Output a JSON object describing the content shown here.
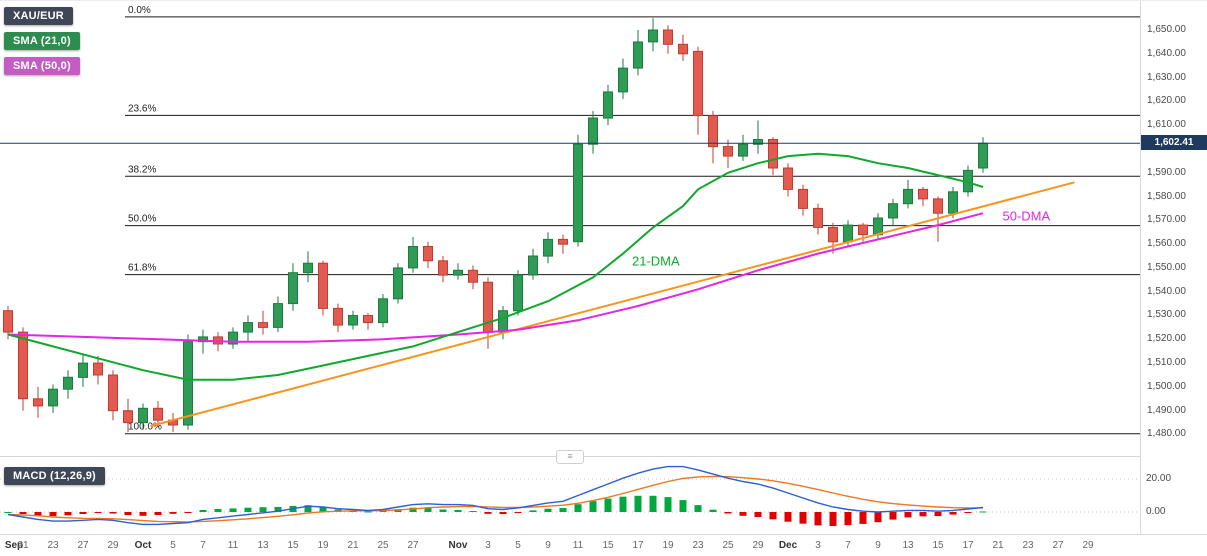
{
  "header": {
    "instrument": "XAU/EUR",
    "sma21_label": "SMA (21,0)",
    "sma50_label": "SMA (50,0)"
  },
  "macd_panel": {
    "label": "MACD (12,26,9)",
    "axis_ticks": [
      20,
      0
    ]
  },
  "price_axis": {
    "ticks": [
      1650,
      1640,
      1630,
      1620,
      1610,
      1590,
      1580,
      1570,
      1560,
      1550,
      1540,
      1530,
      1520,
      1510,
      1500,
      1490,
      1480
    ],
    "last_price_label": "1,602.41"
  },
  "fib_levels": [
    {
      "label": "0.0%",
      "value": 1655.5
    },
    {
      "label": "23.6%",
      "value": 1614.1
    },
    {
      "label": "38.2%",
      "value": 1588.5
    },
    {
      "label": "50.0%",
      "value": 1567.8
    },
    {
      "label": "61.8%",
      "value": 1547.2
    },
    {
      "label": "100.0%",
      "value": 1480.3
    }
  ],
  "annotations": [
    {
      "name": "dma21-label",
      "text": "21-DMA",
      "i": 41.6,
      "v": 1551,
      "color": "#0fa82e"
    },
    {
      "name": "dma50-label",
      "text": "50-DMA",
      "i": 66.3,
      "v": 1570,
      "color": "#e326e3"
    }
  ],
  "x_axis": [
    {
      "t": "Sep",
      "i": 0,
      "m": true
    },
    {
      "t": "21",
      "i": 1
    },
    {
      "t": "23",
      "i": 3
    },
    {
      "t": "27",
      "i": 5
    },
    {
      "t": "29",
      "i": 7
    },
    {
      "t": "Oct",
      "i": 9,
      "m": true
    },
    {
      "t": "5",
      "i": 11
    },
    {
      "t": "7",
      "i": 13
    },
    {
      "t": "11",
      "i": 15
    },
    {
      "t": "13",
      "i": 17
    },
    {
      "t": "15",
      "i": 19
    },
    {
      "t": "19",
      "i": 21
    },
    {
      "t": "21",
      "i": 23
    },
    {
      "t": "25",
      "i": 25
    },
    {
      "t": "27",
      "i": 27
    },
    {
      "t": "Nov",
      "i": 30,
      "m": true
    },
    {
      "t": "3",
      "i": 32
    },
    {
      "t": "5",
      "i": 34
    },
    {
      "t": "9",
      "i": 36
    },
    {
      "t": "11",
      "i": 38
    },
    {
      "t": "15",
      "i": 40
    },
    {
      "t": "17",
      "i": 42
    },
    {
      "t": "19",
      "i": 44
    },
    {
      "t": "23",
      "i": 46
    },
    {
      "t": "25",
      "i": 48
    },
    {
      "t": "29",
      "i": 50
    },
    {
      "t": "Dec",
      "i": 52,
      "m": true
    },
    {
      "t": "3",
      "i": 54
    },
    {
      "t": "7",
      "i": 56
    },
    {
      "t": "9",
      "i": 58
    },
    {
      "t": "13",
      "i": 60
    },
    {
      "t": "15",
      "i": 62
    },
    {
      "t": "17",
      "i": 64
    },
    {
      "t": "21",
      "i": 66
    },
    {
      "t": "23",
      "i": 68
    },
    {
      "t": "27",
      "i": 70
    },
    {
      "t": "29",
      "i": 72
    }
  ],
  "colors": {
    "up": "#2f9c55",
    "up_border": "#1e7a3f",
    "down": "#e25b50",
    "down_border": "#bf3c31",
    "sma21": "#0fa82e",
    "sma50": "#e326e3",
    "trendline": "#f7941e",
    "fib_line": "#1a1a1a",
    "last_price": "#1e3a5f",
    "macd_line": "#2b5fd9",
    "macd_signal": "#ef7622",
    "hist_up": "#00a83e",
    "hist_down": "#e00000",
    "badge_instrument": "#3f4656",
    "badge_sma21": "#2f8c4f",
    "badge_sma50": "#c35cc3",
    "badge_macd": "#3f4656"
  },
  "chart_data": {
    "type": "candlestick",
    "instrument": "XAU/EUR",
    "last_price": 1602.41,
    "price_domain": [
      1472.2,
      1662.2
    ],
    "macd_domain": [
      -13.3,
      32.1
    ],
    "candles": [
      [
        1532,
        1534,
        1520,
        1523
      ],
      [
        1523,
        1525,
        1490,
        1495
      ],
      [
        1495,
        1500,
        1487,
        1492
      ],
      [
        1492,
        1501,
        1489,
        1499
      ],
      [
        1499,
        1507,
        1495,
        1504
      ],
      [
        1504,
        1514,
        1500,
        1510
      ],
      [
        1510,
        1513,
        1501,
        1505
      ],
      [
        1505,
        1507,
        1486,
        1490
      ],
      [
        1490,
        1495,
        1481,
        1485
      ],
      [
        1485,
        1493,
        1482,
        1491
      ],
      [
        1491,
        1494,
        1483,
        1486
      ],
      [
        1486,
        1489,
        1481,
        1484
      ],
      [
        1484,
        1522,
        1482,
        1519
      ],
      [
        1519,
        1524,
        1514,
        1521
      ],
      [
        1521,
        1523,
        1515,
        1518
      ],
      [
        1518,
        1525,
        1516,
        1523
      ],
      [
        1523,
        1530,
        1519,
        1527
      ],
      [
        1527,
        1532,
        1522,
        1525
      ],
      [
        1525,
        1538,
        1523,
        1535
      ],
      [
        1535,
        1552,
        1532,
        1548
      ],
      [
        1548,
        1557,
        1544,
        1552
      ],
      [
        1552,
        1553,
        1530,
        1533
      ],
      [
        1533,
        1535,
        1523,
        1526
      ],
      [
        1526,
        1532,
        1524,
        1530
      ],
      [
        1530,
        1531,
        1524,
        1527
      ],
      [
        1527,
        1539,
        1525,
        1537
      ],
      [
        1537,
        1552,
        1535,
        1550
      ],
      [
        1550,
        1563,
        1548,
        1559
      ],
      [
        1559,
        1561,
        1550,
        1553
      ],
      [
        1553,
        1555,
        1544,
        1547
      ],
      [
        1547,
        1552,
        1545,
        1549
      ],
      [
        1549,
        1551,
        1541,
        1544
      ],
      [
        1544,
        1546,
        1516,
        1523
      ],
      [
        1523,
        1534,
        1520,
        1532
      ],
      [
        1532,
        1549,
        1530,
        1547
      ],
      [
        1547,
        1558,
        1545,
        1555
      ],
      [
        1555,
        1565,
        1552,
        1562
      ],
      [
        1562,
        1564,
        1556,
        1560
      ],
      [
        1561,
        1606,
        1559,
        1602
      ],
      [
        1602,
        1616,
        1598,
        1613
      ],
      [
        1613,
        1627,
        1610,
        1624
      ],
      [
        1624,
        1638,
        1621,
        1634
      ],
      [
        1634,
        1650,
        1631,
        1645
      ],
      [
        1645,
        1655,
        1641,
        1650
      ],
      [
        1650,
        1652,
        1640,
        1644
      ],
      [
        1644,
        1648,
        1637,
        1640
      ],
      [
        1641,
        1643,
        1606,
        1614
      ],
      [
        1614,
        1616,
        1594,
        1601
      ],
      [
        1601,
        1604,
        1592,
        1597
      ],
      [
        1597,
        1606,
        1595,
        1602
      ],
      [
        1602,
        1612,
        1598,
        1604
      ],
      [
        1604,
        1605,
        1589,
        1592
      ],
      [
        1592,
        1594,
        1580,
        1583
      ],
      [
        1583,
        1585,
        1572,
        1575
      ],
      [
        1575,
        1577,
        1564,
        1567
      ],
      [
        1567,
        1569,
        1556,
        1561
      ],
      [
        1561,
        1570,
        1559,
        1568
      ],
      [
        1568,
        1569,
        1561,
        1564
      ],
      [
        1564,
        1573,
        1562,
        1571
      ],
      [
        1571,
        1579,
        1568,
        1577
      ],
      [
        1577,
        1587,
        1575,
        1583
      ],
      [
        1583,
        1584,
        1576,
        1579
      ],
      [
        1579,
        1580,
        1561,
        1573
      ],
      [
        1573,
        1584,
        1571,
        1582
      ],
      [
        1582,
        1593,
        1580,
        1591
      ],
      [
        1592,
        1605,
        1590,
        1602.41
      ]
    ],
    "overlays": {
      "sma21": {
        "window": 21,
        "points": [
          [
            0,
            1522
          ],
          [
            3,
            1517
          ],
          [
            6,
            1512
          ],
          [
            9,
            1507
          ],
          [
            12,
            1503
          ],
          [
            15,
            1503
          ],
          [
            18,
            1505
          ],
          [
            21,
            1509
          ],
          [
            24,
            1513
          ],
          [
            27,
            1517
          ],
          [
            30,
            1523
          ],
          [
            33,
            1529
          ],
          [
            36,
            1536
          ],
          [
            39,
            1546
          ],
          [
            41,
            1556
          ],
          [
            43,
            1567
          ],
          [
            45,
            1576
          ],
          [
            46,
            1583
          ],
          [
            48,
            1590
          ],
          [
            50,
            1594
          ],
          [
            52,
            1597
          ],
          [
            54,
            1598
          ],
          [
            56,
            1597
          ],
          [
            58,
            1594
          ],
          [
            60,
            1592
          ],
          [
            62,
            1589
          ],
          [
            64,
            1586
          ],
          [
            65,
            1584
          ]
        ]
      },
      "sma50": {
        "window": 50,
        "points": [
          [
            0,
            1522
          ],
          [
            5,
            1521
          ],
          [
            10,
            1520
          ],
          [
            15,
            1519
          ],
          [
            20,
            1519
          ],
          [
            25,
            1520
          ],
          [
            30,
            1522
          ],
          [
            34,
            1524
          ],
          [
            38,
            1528
          ],
          [
            42,
            1534
          ],
          [
            46,
            1541
          ],
          [
            50,
            1549
          ],
          [
            54,
            1556
          ],
          [
            58,
            1562
          ],
          [
            62,
            1568
          ],
          [
            65,
            1573
          ]
        ]
      },
      "trendline": {
        "points": [
          [
            9.5,
            1483.5
          ],
          [
            71.1,
            1586
          ]
        ]
      }
    },
    "macd": {
      "params": [
        12,
        26,
        9
      ],
      "line": [
        -1.5,
        -3,
        -4.5,
        -5.5,
        -5.5,
        -5,
        -4.5,
        -5,
        -6.5,
        -7.5,
        -7.5,
        -7,
        -6.5,
        -4.5,
        -3.5,
        -2.5,
        -1.5,
        -0.5,
        0.5,
        2,
        3.5,
        3,
        2,
        1.5,
        1,
        1.5,
        3,
        4.5,
        5,
        4.5,
        4.5,
        4,
        2,
        1.5,
        2.5,
        4,
        5.5,
        6.5,
        10,
        13.5,
        17,
        20.5,
        23.5,
        26,
        27.5,
        27.5,
        25.5,
        23,
        20.5,
        18.5,
        17,
        14.5,
        11.5,
        8.5,
        5.5,
        3,
        1.5,
        0.5,
        0,
        0.5,
        1,
        1,
        0.5,
        1,
        1.8,
        2.8
      ],
      "signal": [
        -1.5,
        -1.8,
        -2.3,
        -3,
        -3.5,
        -3.8,
        -3.9,
        -4.1,
        -4.6,
        -5.2,
        -5.7,
        -5.9,
        -6,
        -5.7,
        -5.3,
        -4.7,
        -4.1,
        -3.4,
        -2.6,
        -1.7,
        -0.6,
        0.1,
        0.5,
        0.7,
        0.7,
        0.9,
        1.3,
        1.9,
        2.6,
        3,
        3.3,
        3.4,
        3.1,
        2.8,
        2.7,
        3,
        3.5,
        4.1,
        5.3,
        6.9,
        8.9,
        11.2,
        13.7,
        16.2,
        18.5,
        20.3,
        21.3,
        21.6,
        21.4,
        20.8,
        20,
        18.9,
        17.4,
        15.6,
        13.6,
        11.5,
        9.5,
        7.7,
        6.2,
        5.1,
        4.3,
        3.6,
        3,
        2.6,
        2.4,
        2.5
      ]
    }
  }
}
